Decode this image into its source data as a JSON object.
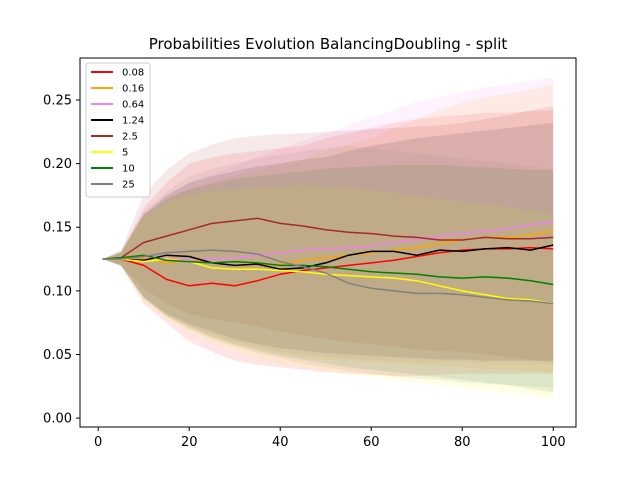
{
  "chart_data": {
    "type": "line",
    "title": "Probabilities Evolution BalancingDoubling  - split",
    "xlabel": "",
    "ylabel": "",
    "xlim": [
      -4,
      105
    ],
    "ylim": [
      -0.007,
      0.283
    ],
    "xticks": [
      0,
      20,
      40,
      60,
      80,
      100
    ],
    "yticks": [
      0.0,
      0.05,
      0.1,
      0.15,
      0.2,
      0.25
    ],
    "xtick_labels": [
      "0",
      "20",
      "40",
      "60",
      "80",
      "100"
    ],
    "ytick_labels": [
      "0.00",
      "0.05",
      "0.10",
      "0.15",
      "0.20",
      "0.25"
    ],
    "grid": false,
    "legend_position": "top-left",
    "series": [
      {
        "name": "0.08",
        "color": "#ff0000",
        "x": [
          1,
          5,
          10,
          15,
          20,
          25,
          30,
          35,
          40,
          45,
          50,
          55,
          60,
          65,
          70,
          75,
          80,
          85,
          90,
          95,
          100
        ],
        "y": [
          0.125,
          0.125,
          0.12,
          0.109,
          0.104,
          0.106,
          0.104,
          0.108,
          0.113,
          0.116,
          0.118,
          0.12,
          0.122,
          0.124,
          0.127,
          0.13,
          0.132,
          0.133,
          0.133,
          0.134,
          0.133
        ],
        "band_upper": [
          0.125,
          0.13,
          0.165,
          0.185,
          0.2,
          0.205,
          0.208,
          0.21,
          0.212,
          0.214,
          0.22,
          0.224,
          0.228,
          0.232,
          0.235,
          0.237,
          0.238,
          0.24,
          0.24,
          0.241,
          0.242
        ],
        "band_lower": [
          0.125,
          0.12,
          0.09,
          0.075,
          0.06,
          0.052,
          0.045,
          0.042,
          0.04,
          0.038,
          0.036,
          0.035,
          0.034,
          0.033,
          0.033,
          0.034,
          0.035,
          0.035,
          0.035,
          0.035,
          0.035
        ]
      },
      {
        "name": "0.16",
        "color": "#ffa500",
        "x": [
          1,
          5,
          10,
          15,
          20,
          25,
          30,
          35,
          40,
          45,
          50,
          55,
          60,
          65,
          70,
          75,
          80,
          85,
          90,
          95,
          100
        ],
        "y": [
          0.125,
          0.125,
          0.126,
          0.122,
          0.124,
          0.122,
          0.12,
          0.12,
          0.121,
          0.124,
          0.126,
          0.128,
          0.13,
          0.132,
          0.134,
          0.137,
          0.14,
          0.142,
          0.142,
          0.144,
          0.147
        ],
        "band_upper": [
          0.125,
          0.13,
          0.158,
          0.172,
          0.18,
          0.186,
          0.19,
          0.195,
          0.2,
          0.204,
          0.21,
          0.215,
          0.22,
          0.228,
          0.235,
          0.242,
          0.248,
          0.252,
          0.255,
          0.258,
          0.262
        ],
        "band_lower": [
          0.125,
          0.12,
          0.095,
          0.08,
          0.07,
          0.063,
          0.058,
          0.054,
          0.05,
          0.048,
          0.046,
          0.045,
          0.044,
          0.043,
          0.042,
          0.041,
          0.04,
          0.039,
          0.038,
          0.037,
          0.036
        ]
      },
      {
        "name": "0.64",
        "color": "#ee82ee",
        "x": [
          1,
          5,
          10,
          15,
          20,
          25,
          30,
          35,
          40,
          45,
          50,
          55,
          60,
          65,
          70,
          75,
          80,
          85,
          90,
          95,
          100
        ],
        "y": [
          0.125,
          0.125,
          0.127,
          0.126,
          0.124,
          0.125,
          0.126,
          0.128,
          0.13,
          0.132,
          0.133,
          0.134,
          0.135,
          0.138,
          0.14,
          0.143,
          0.145,
          0.147,
          0.149,
          0.152,
          0.154
        ],
        "band_upper": [
          0.125,
          0.13,
          0.16,
          0.175,
          0.185,
          0.192,
          0.198,
          0.205,
          0.212,
          0.218,
          0.224,
          0.23,
          0.236,
          0.242,
          0.248,
          0.252,
          0.256,
          0.26,
          0.262,
          0.265,
          0.268
        ],
        "band_lower": [
          0.125,
          0.12,
          0.095,
          0.082,
          0.072,
          0.066,
          0.06,
          0.056,
          0.052,
          0.05,
          0.048,
          0.047,
          0.046,
          0.045,
          0.044,
          0.044,
          0.044,
          0.043,
          0.043,
          0.043,
          0.042
        ]
      },
      {
        "name": "1.24",
        "color": "#000000",
        "x": [
          1,
          5,
          10,
          15,
          20,
          25,
          30,
          35,
          40,
          45,
          50,
          55,
          60,
          65,
          70,
          75,
          80,
          85,
          90,
          95,
          100
        ],
        "y": [
          0.125,
          0.125,
          0.124,
          0.128,
          0.127,
          0.122,
          0.12,
          0.121,
          0.117,
          0.118,
          0.122,
          0.128,
          0.131,
          0.131,
          0.128,
          0.132,
          0.131,
          0.133,
          0.134,
          0.132,
          0.136
        ],
        "band_upper": [
          0.125,
          0.13,
          0.16,
          0.175,
          0.185,
          0.19,
          0.194,
          0.198,
          0.2,
          0.203,
          0.205,
          0.21,
          0.214,
          0.217,
          0.22,
          0.222,
          0.224,
          0.226,
          0.228,
          0.23,
          0.232
        ],
        "band_lower": [
          0.125,
          0.12,
          0.095,
          0.082,
          0.074,
          0.068,
          0.062,
          0.058,
          0.055,
          0.053,
          0.051,
          0.05,
          0.049,
          0.048,
          0.047,
          0.046,
          0.046,
          0.045,
          0.045,
          0.045,
          0.045
        ]
      },
      {
        "name": "2.5",
        "color": "#a52a2a",
        "x": [
          1,
          5,
          10,
          15,
          20,
          25,
          30,
          35,
          40,
          45,
          50,
          55,
          60,
          65,
          70,
          75,
          80,
          85,
          90,
          95,
          100
        ],
        "y": [
          0.125,
          0.126,
          0.138,
          0.143,
          0.148,
          0.153,
          0.155,
          0.157,
          0.153,
          0.151,
          0.148,
          0.146,
          0.145,
          0.143,
          0.142,
          0.14,
          0.14,
          0.142,
          0.141,
          0.141,
          0.142
        ],
        "band_upper": [
          0.125,
          0.132,
          0.175,
          0.195,
          0.208,
          0.215,
          0.22,
          0.222,
          0.223,
          0.224,
          0.225,
          0.226,
          0.227,
          0.228,
          0.229,
          0.23,
          0.232,
          0.235,
          0.238,
          0.242,
          0.245
        ],
        "band_lower": [
          0.125,
          0.12,
          0.102,
          0.09,
          0.082,
          0.078,
          0.075,
          0.072,
          0.068,
          0.065,
          0.062,
          0.06,
          0.058,
          0.056,
          0.054,
          0.053,
          0.052,
          0.05,
          0.048,
          0.046,
          0.044
        ]
      },
      {
        "name": "5",
        "color": "#ffff00",
        "x": [
          1,
          5,
          10,
          15,
          20,
          25,
          30,
          35,
          40,
          45,
          50,
          55,
          60,
          65,
          70,
          75,
          80,
          85,
          90,
          95,
          100
        ],
        "y": [
          0.125,
          0.125,
          0.123,
          0.125,
          0.123,
          0.118,
          0.117,
          0.117,
          0.116,
          0.115,
          0.113,
          0.112,
          0.111,
          0.11,
          0.108,
          0.104,
          0.1,
          0.097,
          0.094,
          0.093,
          0.09
        ],
        "band_upper": [
          0.125,
          0.13,
          0.158,
          0.17,
          0.175,
          0.178,
          0.18,
          0.181,
          0.182,
          0.183,
          0.182,
          0.181,
          0.179,
          0.177,
          0.175,
          0.172,
          0.17,
          0.168,
          0.166,
          0.163,
          0.16
        ],
        "band_lower": [
          0.125,
          0.12,
          0.092,
          0.078,
          0.068,
          0.06,
          0.053,
          0.047,
          0.043,
          0.04,
          0.037,
          0.035,
          0.033,
          0.03,
          0.028,
          0.026,
          0.024,
          0.022,
          0.02,
          0.018,
          0.015
        ]
      },
      {
        "name": "10",
        "color": "#008000",
        "x": [
          1,
          5,
          10,
          15,
          20,
          25,
          30,
          35,
          40,
          45,
          50,
          55,
          60,
          65,
          70,
          75,
          80,
          85,
          90,
          95,
          100
        ],
        "y": [
          0.125,
          0.126,
          0.128,
          0.124,
          0.123,
          0.122,
          0.123,
          0.122,
          0.12,
          0.12,
          0.119,
          0.117,
          0.115,
          0.114,
          0.113,
          0.111,
          0.11,
          0.111,
          0.11,
          0.108,
          0.105
        ],
        "band_upper": [
          0.125,
          0.131,
          0.16,
          0.172,
          0.18,
          0.184,
          0.188,
          0.19,
          0.192,
          0.194,
          0.196,
          0.197,
          0.198,
          0.199,
          0.199,
          0.199,
          0.198,
          0.197,
          0.196,
          0.195,
          0.195
        ],
        "band_lower": [
          0.125,
          0.12,
          0.095,
          0.08,
          0.072,
          0.064,
          0.058,
          0.053,
          0.049,
          0.046,
          0.043,
          0.04,
          0.038,
          0.036,
          0.034,
          0.032,
          0.03,
          0.028,
          0.026,
          0.023,
          0.02
        ]
      },
      {
        "name": "25",
        "color": "#808080",
        "x": [
          1,
          5,
          10,
          15,
          20,
          25,
          30,
          35,
          40,
          45,
          50,
          55,
          60,
          65,
          70,
          75,
          80,
          85,
          90,
          95,
          100
        ],
        "y": [
          0.125,
          0.125,
          0.127,
          0.13,
          0.131,
          0.132,
          0.131,
          0.129,
          0.123,
          0.119,
          0.114,
          0.106,
          0.102,
          0.1,
          0.098,
          0.098,
          0.097,
          0.095,
          0.093,
          0.092,
          0.09
        ],
        "band_upper": [
          0.125,
          0.131,
          0.162,
          0.178,
          0.19,
          0.196,
          0.2,
          0.204,
          0.207,
          0.21,
          0.212,
          0.214,
          0.212,
          0.21,
          0.208,
          0.206,
          0.204,
          0.202,
          0.2,
          0.198,
          0.196
        ],
        "band_lower": [
          0.125,
          0.119,
          0.093,
          0.08,
          0.07,
          0.062,
          0.056,
          0.051,
          0.047,
          0.043,
          0.04,
          0.037,
          0.035,
          0.033,
          0.031,
          0.03,
          0.028,
          0.027,
          0.026,
          0.025,
          0.024
        ]
      }
    ]
  }
}
